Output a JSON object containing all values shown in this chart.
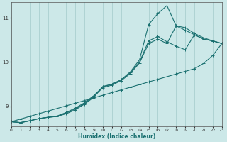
{
  "xlabel": "Humidex (Indice chaleur)",
  "ylabel": "",
  "xlim": [
    0,
    23
  ],
  "ylim": [
    8.55,
    11.35
  ],
  "yticks": [
    9,
    10,
    11
  ],
  "xticks": [
    0,
    1,
    2,
    3,
    4,
    5,
    6,
    7,
    8,
    9,
    10,
    11,
    12,
    13,
    14,
    15,
    16,
    17,
    18,
    19,
    20,
    21,
    22,
    23
  ],
  "bg_color": "#cce8e8",
  "line_color": "#1a7070",
  "grid_color": "#aacfcf",
  "lines": [
    {
      "x": [
        0,
        1,
        2,
        3,
        4,
        5,
        6,
        7,
        8,
        9,
        10,
        11,
        12,
        13,
        14,
        15,
        16,
        17,
        18,
        19,
        20,
        21,
        22,
        23
      ],
      "y": [
        8.65,
        8.63,
        8.67,
        8.72,
        8.75,
        8.77,
        8.83,
        8.92,
        9.05,
        9.2,
        9.45,
        9.5,
        9.6,
        9.78,
        10.05,
        10.85,
        11.1,
        11.28,
        10.82,
        10.78,
        10.65,
        10.55,
        10.48,
        10.42
      ]
    },
    {
      "x": [
        0,
        1,
        2,
        3,
        4,
        5,
        6,
        7,
        8,
        9,
        10,
        11,
        12,
        13,
        14,
        15,
        16,
        17,
        18,
        19,
        20,
        21,
        22,
        23
      ],
      "y": [
        8.65,
        8.63,
        8.67,
        8.72,
        8.75,
        8.77,
        8.85,
        8.94,
        9.06,
        9.22,
        9.42,
        9.48,
        9.58,
        9.74,
        9.98,
        10.42,
        10.52,
        10.42,
        10.82,
        10.72,
        10.62,
        10.52,
        10.48,
        10.42
      ]
    },
    {
      "x": [
        0,
        1,
        2,
        3,
        4,
        5,
        6,
        7,
        8,
        9,
        10,
        11,
        12,
        13,
        14,
        15,
        16,
        17,
        18,
        19,
        20,
        21,
        22,
        23
      ],
      "y": [
        8.65,
        8.63,
        8.67,
        8.72,
        8.75,
        8.78,
        8.86,
        8.96,
        9.08,
        9.24,
        9.44,
        9.5,
        9.6,
        9.76,
        10.0,
        10.48,
        10.58,
        10.46,
        10.36,
        10.28,
        10.62,
        10.52,
        10.48,
        10.42
      ]
    },
    {
      "x": [
        0,
        1,
        2,
        3,
        4,
        5,
        6,
        7,
        8,
        9,
        10,
        11,
        12,
        13,
        14,
        15,
        16,
        17,
        18,
        19,
        20,
        21,
        22,
        23
      ],
      "y": [
        8.65,
        8.71,
        8.77,
        8.83,
        8.89,
        8.95,
        9.01,
        9.07,
        9.13,
        9.19,
        9.25,
        9.31,
        9.37,
        9.43,
        9.49,
        9.55,
        9.61,
        9.67,
        9.73,
        9.79,
        9.85,
        9.97,
        10.15,
        10.42
      ]
    }
  ]
}
